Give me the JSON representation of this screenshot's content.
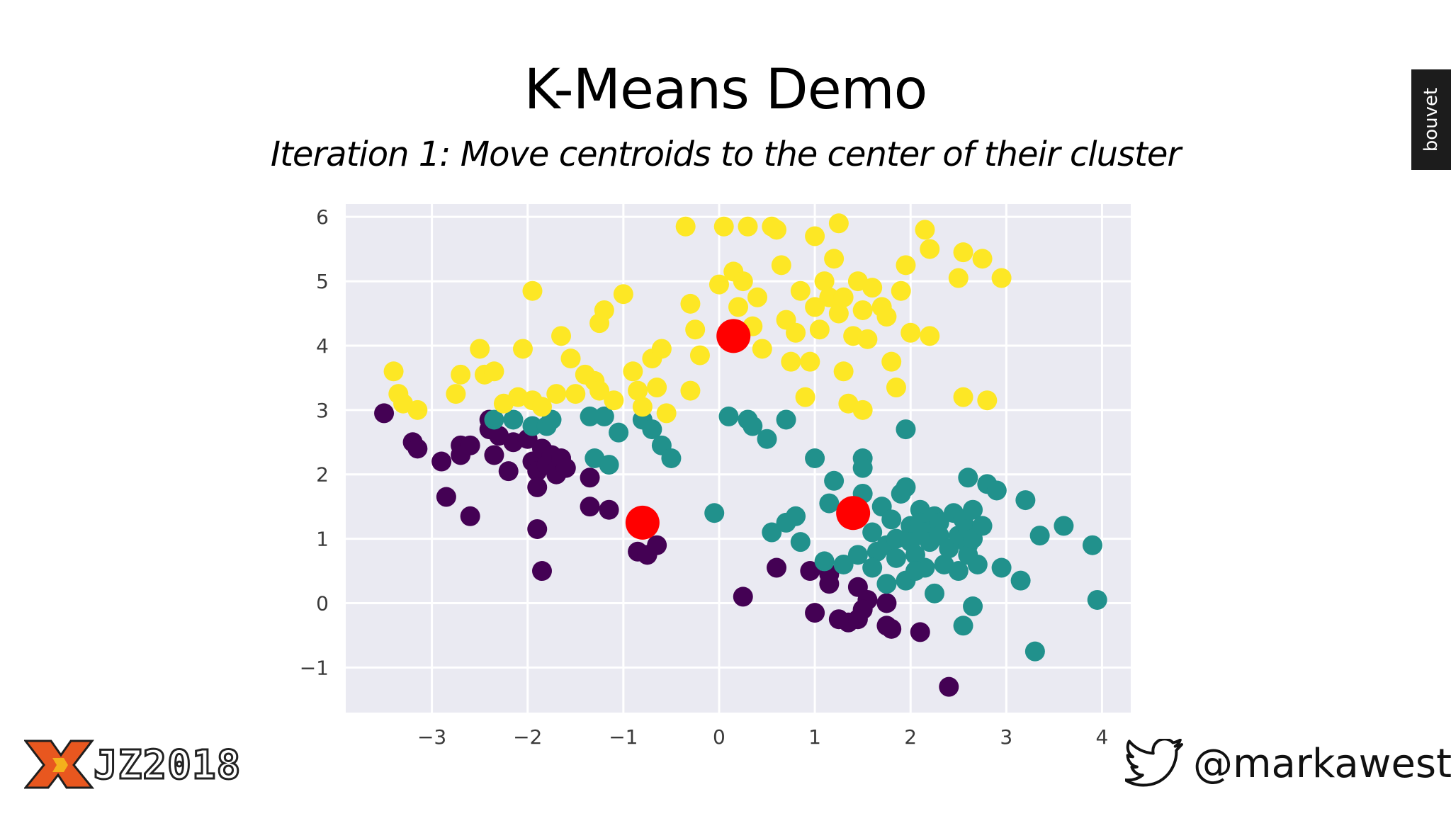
{
  "slide": {
    "title": "K-Means Demo",
    "subtitle": "Iteration 1: Move centroids to the center of their cluster",
    "brand_tab": "bouvet",
    "event_logo": "JZ2018",
    "twitter_handle": "@markawest"
  },
  "colors": {
    "plot_bg": "#eaeaf2",
    "grid": "#ffffff",
    "cluster_purple": "#440154",
    "cluster_teal": "#21918c",
    "cluster_yellow": "#fde725",
    "centroid": "#ff0000"
  },
  "chart_data": {
    "type": "scatter",
    "title": "",
    "xlabel": "",
    "ylabel": "",
    "xlim": [
      -3.9,
      4.3
    ],
    "ylim": [
      -1.7,
      6.2
    ],
    "xticks": [
      -3,
      -2,
      -1,
      0,
      1,
      2,
      3,
      4
    ],
    "yticks": [
      -1,
      0,
      1,
      2,
      3,
      4,
      5,
      6
    ],
    "grid": true,
    "series": [
      {
        "color": "#440154",
        "points": [
          [
            -3.5,
            2.95
          ],
          [
            -3.2,
            2.5
          ],
          [
            -3.15,
            2.4
          ],
          [
            -2.9,
            2.2
          ],
          [
            -2.85,
            1.65
          ],
          [
            -2.7,
            2.45
          ],
          [
            -2.7,
            2.3
          ],
          [
            -2.6,
            1.35
          ],
          [
            -2.6,
            2.45
          ],
          [
            -2.4,
            2.7
          ],
          [
            -2.35,
            2.3
          ],
          [
            -2.3,
            2.6
          ],
          [
            -2.2,
            2.05
          ],
          [
            -2.15,
            2.5
          ],
          [
            -2.0,
            2.55
          ],
          [
            -1.95,
            2.2
          ],
          [
            -1.9,
            2.05
          ],
          [
            -1.9,
            1.8
          ],
          [
            -1.85,
            2.4
          ],
          [
            -1.8,
            2.15
          ],
          [
            -1.75,
            2.3
          ],
          [
            -1.7,
            2.0
          ],
          [
            -1.65,
            2.25
          ],
          [
            -1.9,
            1.15
          ],
          [
            -1.85,
            0.5
          ],
          [
            -1.35,
            1.95
          ],
          [
            -1.35,
            1.5
          ],
          [
            -1.15,
            1.45
          ],
          [
            -0.85,
            0.8
          ],
          [
            -0.75,
            0.75
          ],
          [
            -0.65,
            0.9
          ],
          [
            0.25,
            0.1
          ],
          [
            0.6,
            0.55
          ],
          [
            0.95,
            0.5
          ],
          [
            1.15,
            0.45
          ],
          [
            1.15,
            0.3
          ],
          [
            1.45,
            0.25
          ],
          [
            1.55,
            0.05
          ],
          [
            1.5,
            -0.1
          ],
          [
            1.45,
            -0.25
          ],
          [
            1.35,
            -0.3
          ],
          [
            1.25,
            -0.25
          ],
          [
            1.0,
            -0.15
          ],
          [
            1.75,
            0.0
          ],
          [
            1.8,
            -0.4
          ],
          [
            1.75,
            -0.35
          ],
          [
            2.1,
            -0.45
          ],
          [
            2.4,
            -1.3
          ],
          [
            -2.4,
            2.85
          ],
          [
            -1.6,
            2.1
          ]
        ]
      },
      {
        "color": "#21918c",
        "points": [
          [
            -2.35,
            2.85
          ],
          [
            -2.15,
            2.85
          ],
          [
            -1.95,
            2.75
          ],
          [
            -1.8,
            2.75
          ],
          [
            -1.75,
            2.85
          ],
          [
            -1.35,
            2.9
          ],
          [
            -1.2,
            2.9
          ],
          [
            -1.05,
            2.65
          ],
          [
            -0.8,
            2.85
          ],
          [
            -0.7,
            2.7
          ],
          [
            -0.6,
            2.45
          ],
          [
            -0.5,
            2.25
          ],
          [
            -1.3,
            2.25
          ],
          [
            -1.15,
            2.15
          ],
          [
            0.1,
            2.9
          ],
          [
            0.3,
            2.85
          ],
          [
            0.35,
            2.75
          ],
          [
            0.5,
            2.55
          ],
          [
            0.7,
            2.85
          ],
          [
            -0.05,
            1.4
          ],
          [
            0.55,
            1.1
          ],
          [
            0.7,
            1.25
          ],
          [
            0.8,
            1.35
          ],
          [
            0.85,
            0.95
          ],
          [
            1.0,
            2.25
          ],
          [
            1.15,
            1.55
          ],
          [
            1.2,
            1.9
          ],
          [
            1.5,
            2.25
          ],
          [
            1.5,
            2.1
          ],
          [
            1.5,
            1.7
          ],
          [
            1.1,
            0.65
          ],
          [
            1.3,
            0.6
          ],
          [
            1.6,
            1.1
          ],
          [
            1.7,
            1.5
          ],
          [
            1.65,
            0.8
          ],
          [
            1.75,
            0.9
          ],
          [
            1.8,
            1.3
          ],
          [
            1.85,
            1.0
          ],
          [
            1.85,
            0.7
          ],
          [
            1.9,
            1.7
          ],
          [
            1.95,
            1.8
          ],
          [
            1.95,
            2.7
          ],
          [
            2.0,
            1.2
          ],
          [
            2.0,
            0.95
          ],
          [
            2.05,
            0.75
          ],
          [
            2.1,
            1.45
          ],
          [
            2.1,
            1.25
          ],
          [
            2.15,
            1.1
          ],
          [
            2.15,
            0.55
          ],
          [
            2.2,
            0.95
          ],
          [
            2.25,
            1.35
          ],
          [
            2.3,
            1.25
          ],
          [
            2.3,
            1.05
          ],
          [
            2.35,
            0.6
          ],
          [
            2.4,
            0.85
          ],
          [
            2.45,
            1.4
          ],
          [
            2.5,
            1.05
          ],
          [
            2.5,
            0.5
          ],
          [
            2.55,
            1.3
          ],
          [
            2.6,
            1.15
          ],
          [
            2.6,
            0.9
          ],
          [
            2.6,
            0.75
          ],
          [
            2.65,
            1.45
          ],
          [
            2.65,
            1.0
          ],
          [
            2.7,
            0.6
          ],
          [
            2.75,
            1.2
          ],
          [
            2.8,
            1.85
          ],
          [
            2.9,
            1.75
          ],
          [
            2.6,
            1.95
          ],
          [
            2.95,
            0.55
          ],
          [
            3.2,
            1.6
          ],
          [
            3.35,
            1.05
          ],
          [
            3.6,
            1.2
          ],
          [
            3.9,
            0.9
          ],
          [
            3.95,
            0.05
          ],
          [
            3.15,
            0.35
          ],
          [
            2.55,
            -0.35
          ],
          [
            2.65,
            -0.05
          ],
          [
            3.3,
            -0.75
          ],
          [
            1.75,
            0.3
          ],
          [
            1.95,
            0.35
          ],
          [
            2.25,
            0.15
          ],
          [
            2.05,
            0.5
          ],
          [
            1.45,
            0.75
          ],
          [
            1.6,
            0.55
          ]
        ]
      },
      {
        "color": "#fde725",
        "points": [
          [
            -3.4,
            3.6
          ],
          [
            -3.35,
            3.25
          ],
          [
            -3.3,
            3.1
          ],
          [
            -3.15,
            3.0
          ],
          [
            -2.75,
            3.25
          ],
          [
            -2.7,
            3.55
          ],
          [
            -2.5,
            3.95
          ],
          [
            -2.45,
            3.55
          ],
          [
            -2.35,
            3.6
          ],
          [
            -2.25,
            3.1
          ],
          [
            -2.1,
            3.2
          ],
          [
            -2.05,
            3.95
          ],
          [
            -1.95,
            3.15
          ],
          [
            -1.95,
            4.85
          ],
          [
            -1.85,
            3.05
          ],
          [
            -1.7,
            3.25
          ],
          [
            -1.65,
            4.15
          ],
          [
            -1.55,
            3.8
          ],
          [
            -1.5,
            3.25
          ],
          [
            -1.4,
            3.55
          ],
          [
            -1.3,
            3.45
          ],
          [
            -1.25,
            3.3
          ],
          [
            -1.25,
            4.35
          ],
          [
            -1.2,
            4.55
          ],
          [
            -1.1,
            3.15
          ],
          [
            -1.0,
            4.8
          ],
          [
            -0.9,
            3.6
          ],
          [
            -0.85,
            3.3
          ],
          [
            -0.8,
            3.05
          ],
          [
            -0.7,
            3.8
          ],
          [
            -0.65,
            3.35
          ],
          [
            -0.55,
            2.95
          ],
          [
            -0.35,
            5.85
          ],
          [
            -0.3,
            4.65
          ],
          [
            -0.3,
            3.3
          ],
          [
            -0.25,
            4.25
          ],
          [
            -0.2,
            3.85
          ],
          [
            0.0,
            4.95
          ],
          [
            0.05,
            5.85
          ],
          [
            0.15,
            5.15
          ],
          [
            0.2,
            4.6
          ],
          [
            0.25,
            5.0
          ],
          [
            0.3,
            5.85
          ],
          [
            0.35,
            4.3
          ],
          [
            0.4,
            4.75
          ],
          [
            0.45,
            3.95
          ],
          [
            0.55,
            5.85
          ],
          [
            0.6,
            5.8
          ],
          [
            0.65,
            5.25
          ],
          [
            0.7,
            4.4
          ],
          [
            0.75,
            3.75
          ],
          [
            0.8,
            4.2
          ],
          [
            0.85,
            4.85
          ],
          [
            0.9,
            3.2
          ],
          [
            0.95,
            3.75
          ],
          [
            1.0,
            5.7
          ],
          [
            1.0,
            4.6
          ],
          [
            1.05,
            4.25
          ],
          [
            1.1,
            5.0
          ],
          [
            1.15,
            4.75
          ],
          [
            1.2,
            5.35
          ],
          [
            1.25,
            4.5
          ],
          [
            1.3,
            3.6
          ],
          [
            1.3,
            4.75
          ],
          [
            1.35,
            3.1
          ],
          [
            1.4,
            4.15
          ],
          [
            1.45,
            5.0
          ],
          [
            1.5,
            4.55
          ],
          [
            1.5,
            3.0
          ],
          [
            1.55,
            4.1
          ],
          [
            1.6,
            4.9
          ],
          [
            1.7,
            4.6
          ],
          [
            1.75,
            4.45
          ],
          [
            1.8,
            3.75
          ],
          [
            1.85,
            3.35
          ],
          [
            1.9,
            4.85
          ],
          [
            1.95,
            5.25
          ],
          [
            2.0,
            4.2
          ],
          [
            2.15,
            5.8
          ],
          [
            2.2,
            5.5
          ],
          [
            2.2,
            4.15
          ],
          [
            2.5,
            5.05
          ],
          [
            2.55,
            5.45
          ],
          [
            2.55,
            3.2
          ],
          [
            2.75,
            5.35
          ],
          [
            2.8,
            3.15
          ],
          [
            2.95,
            5.05
          ],
          [
            1.25,
            5.9
          ],
          [
            -0.6,
            3.95
          ]
        ]
      },
      {
        "name": "centroids",
        "color": "#ff0000",
        "points": [
          [
            0.15,
            4.15
          ],
          [
            -0.8,
            1.25
          ],
          [
            1.4,
            1.4
          ]
        ]
      }
    ]
  }
}
